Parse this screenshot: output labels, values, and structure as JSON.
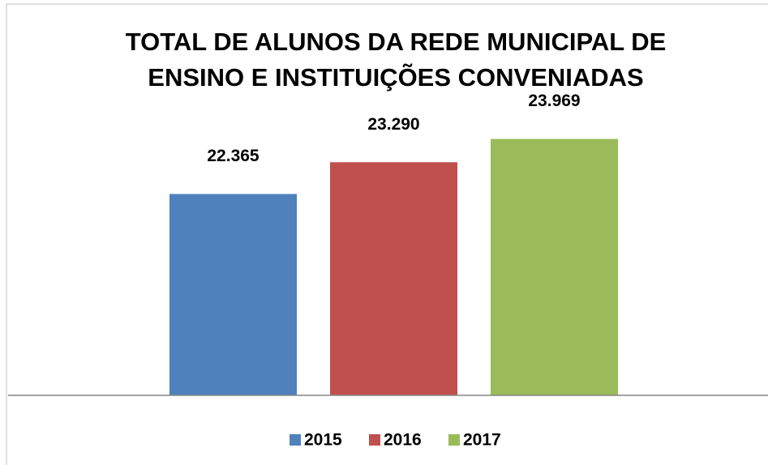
{
  "chart_data": {
    "type": "bar",
    "title": [
      "TOTAL DE ALUNOS DA REDE MUNICIPAL DE",
      "ENSINO E INSTITUIÇÕES CONVENIADAS"
    ],
    "categories": [
      null
    ],
    "series": [
      {
        "name": "2015",
        "color": "#4f81bd",
        "values": [
          22365
        ],
        "value_labels": [
          "22.365"
        ]
      },
      {
        "name": "2016",
        "color": "#c0504d",
        "values": [
          23290
        ],
        "value_labels": [
          "23.290"
        ]
      },
      {
        "name": "2017",
        "color": "#9bbb59",
        "values": [
          23969
        ],
        "value_labels": [
          "23.969"
        ]
      }
    ],
    "ylim": [
      16500,
      24500
    ],
    "legend": "bottom"
  }
}
